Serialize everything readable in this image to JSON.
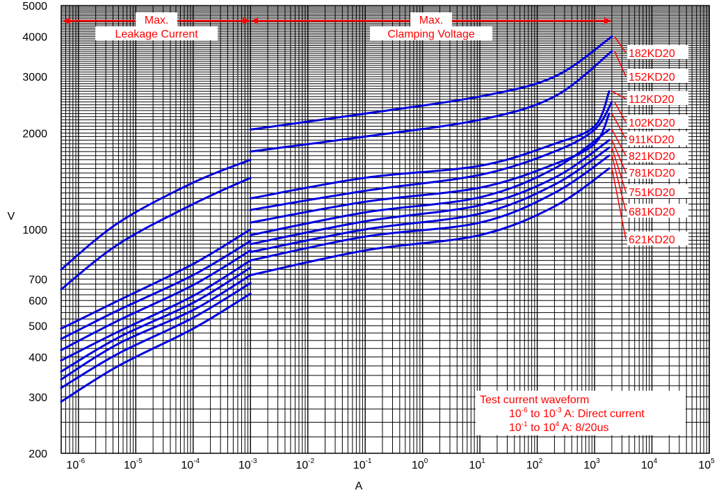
{
  "chart_data": {
    "type": "line",
    "x_scale": "log",
    "y_scale": "log",
    "xlabel": "A",
    "ylabel": "V",
    "xlim": [
      5e-07,
      100000.0
    ],
    "ylim": [
      200,
      5000
    ],
    "x_ticks": [
      {
        "base": "10",
        "exp": "-6"
      },
      {
        "base": "10",
        "exp": "-5"
      },
      {
        "base": "10",
        "exp": "-4"
      },
      {
        "base": "10",
        "exp": "-3"
      },
      {
        "base": "10",
        "exp": "-2"
      },
      {
        "base": "10",
        "exp": "-1"
      },
      {
        "base": "10",
        "exp": "0"
      },
      {
        "base": "10",
        "exp": "1"
      },
      {
        "base": "10",
        "exp": "2"
      },
      {
        "base": "10",
        "exp": "3"
      },
      {
        "base": "10",
        "exp": "4"
      },
      {
        "base": "10",
        "exp": "5"
      }
    ],
    "y_ticks": [
      "200",
      "300",
      "400",
      "500",
      "600",
      "700",
      "1000",
      "2000",
      "3000",
      "4000",
      "5000"
    ],
    "grid": true,
    "region_labels": [
      {
        "line1": "Max.",
        "line2": "Leakage Current",
        "from": 5e-07,
        "to": 0.001
      },
      {
        "line1": "Max.",
        "line2": "Clamping Voltage",
        "from": 0.001,
        "to": 2000
      }
    ],
    "annotation": {
      "title": "Test current waveform",
      "line2": {
        "a": "10",
        "a_exp": "-6",
        "mid": " to 10",
        "b_exp": "-3",
        "rest": " A: Direct current"
      },
      "line3": {
        "a": "10",
        "a_exp": "-1",
        "mid": " to 10",
        "b_exp": "4",
        "rest": " A: 8/20us"
      }
    },
    "series": [
      {
        "name": "182KD20",
        "leakage": {
          "x": [
            5e-07,
            5e-06,
            0.0001,
            0.001
          ],
          "y": [
            750,
            1050,
            1400,
            1650
          ]
        },
        "clamping": {
          "x": [
            0.001,
            0.1,
            10,
            200,
            2000
          ],
          "y": [
            2050,
            2300,
            2600,
            3000,
            4000
          ]
        }
      },
      {
        "name": "152KD20",
        "leakage": {
          "x": [
            5e-07,
            5e-06,
            0.0001,
            0.001
          ],
          "y": [
            650,
            900,
            1200,
            1450
          ]
        },
        "clamping": {
          "x": [
            0.001,
            0.1,
            10,
            200,
            2000
          ],
          "y": [
            1750,
            1950,
            2200,
            2600,
            3600
          ]
        }
      },
      {
        "name": "112KD20",
        "leakage": {
          "x": [
            5e-07,
            5e-06,
            0.0001,
            0.001
          ],
          "y": [
            490,
            600,
            780,
            1000
          ]
        },
        "clamping": {
          "x": [
            0.001,
            0.1,
            10,
            200,
            1000,
            1800
          ],
          "y": [
            1250,
            1450,
            1580,
            1850,
            2100,
            2700
          ]
        }
      },
      {
        "name": "102KD20",
        "leakage": {
          "x": [
            5e-07,
            5e-06,
            0.0001,
            0.001
          ],
          "y": [
            455,
            560,
            720,
            920
          ]
        },
        "clamping": {
          "x": [
            0.001,
            0.1,
            10,
            200,
            1000,
            2000
          ],
          "y": [
            1150,
            1320,
            1480,
            1750,
            2050,
            2500
          ]
        }
      },
      {
        "name": "911KD20",
        "leakage": {
          "x": [
            5e-07,
            5e-06,
            0.0001,
            0.001
          ],
          "y": [
            420,
            520,
            670,
            860
          ]
        },
        "clamping": {
          "x": [
            0.001,
            0.1,
            10,
            200,
            1000,
            1800
          ],
          "y": [
            1050,
            1220,
            1350,
            1600,
            1850,
            2300
          ]
        }
      },
      {
        "name": "821KD20",
        "leakage": {
          "x": [
            5e-07,
            5e-06,
            0.0001,
            0.001
          ],
          "y": [
            390,
            480,
            620,
            800
          ]
        },
        "clamping": {
          "x": [
            0.001,
            0.1,
            10,
            200,
            1800
          ],
          "y": [
            960,
            1130,
            1260,
            1550,
            2050
          ]
        }
      },
      {
        "name": "781KD20",
        "leakage": {
          "x": [
            5e-07,
            5e-06,
            0.0001,
            0.001
          ],
          "y": [
            360,
            460,
            590,
            760
          ]
        },
        "clamping": {
          "x": [
            0.001,
            0.1,
            10,
            200,
            1800
          ],
          "y": [
            900,
            1060,
            1190,
            1450,
            1900
          ]
        }
      },
      {
        "name": "751KD20",
        "leakage": {
          "x": [
            5e-07,
            5e-06,
            0.0001,
            0.001
          ],
          "y": [
            340,
            440,
            560,
            720
          ]
        },
        "clamping": {
          "x": [
            0.001,
            0.1,
            10,
            200,
            1800
          ],
          "y": [
            850,
            1000,
            1120,
            1380,
            1800
          ]
        }
      },
      {
        "name": "681KD20",
        "leakage": {
          "x": [
            5e-07,
            5e-06,
            0.0001,
            0.001
          ],
          "y": [
            320,
            410,
            530,
            680
          ]
        },
        "clamping": {
          "x": [
            0.001,
            0.1,
            10,
            200,
            1800
          ],
          "y": [
            800,
            950,
            1050,
            1300,
            1700
          ]
        }
      },
      {
        "name": "621KD20",
        "leakage": {
          "x": [
            5e-07,
            5e-06,
            0.0001,
            0.001
          ],
          "y": [
            290,
            375,
            490,
            630
          ]
        },
        "clamping": {
          "x": [
            0.001,
            0.1,
            10,
            200,
            1800
          ],
          "y": [
            720,
            860,
            960,
            1180,
            1550
          ]
        }
      }
    ]
  }
}
